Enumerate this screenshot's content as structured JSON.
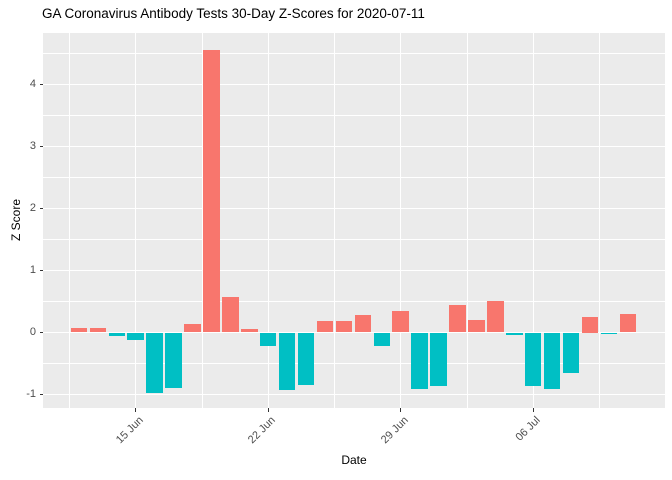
{
  "chart_data": {
    "type": "bar",
    "title": "GA Coronavirus Antibody Tests 30-Day Z-Scores for 2020-07-11",
    "xlabel": "Date",
    "ylabel": "Z Score",
    "dates": [
      "2020-06-12",
      "2020-06-13",
      "2020-06-14",
      "2020-06-15",
      "2020-06-16",
      "2020-06-17",
      "2020-06-18",
      "2020-06-19",
      "2020-06-20",
      "2020-06-21",
      "2020-06-22",
      "2020-06-23",
      "2020-06-24",
      "2020-06-25",
      "2020-06-26",
      "2020-06-27",
      "2020-06-28",
      "2020-06-29",
      "2020-06-30",
      "2020-07-01",
      "2020-07-02",
      "2020-07-03",
      "2020-07-04",
      "2020-07-05",
      "2020-07-06",
      "2020-07-07",
      "2020-07-08",
      "2020-07-09",
      "2020-07-10",
      "2020-07-11"
    ],
    "values": [
      0.08,
      0.07,
      -0.05,
      -0.12,
      -0.97,
      -0.89,
      0.14,
      4.55,
      0.58,
      0.05,
      -0.21,
      -0.92,
      -0.84,
      0.19,
      0.18,
      0.29,
      -0.22,
      0.35,
      -0.91,
      -0.86,
      0.45,
      0.2,
      0.51,
      -0.04,
      -0.87,
      -0.91,
      -0.65,
      0.25,
      -0.03,
      0.3
    ],
    "x_ticks": [
      {
        "label": "15 Jun",
        "day_index": 3
      },
      {
        "label": "22 Jun",
        "day_index": 10
      },
      {
        "label": "29 Jun",
        "day_index": 17
      },
      {
        "label": "06 Jul",
        "day_index": 24
      }
    ],
    "y_ticks": [
      -1,
      0,
      1,
      2,
      3,
      4
    ],
    "ylim": [
      -1.22,
      4.83
    ],
    "grid": true,
    "legend": "none",
    "colors": {
      "positive": "#F8766D",
      "negative": "#00BFC4",
      "panel_bg": "#EBEBEB",
      "gridline": "#FFFFFF",
      "tick_mark": "#333333",
      "tick_text": "#4D4D4D",
      "axis_text": "#000000"
    }
  }
}
